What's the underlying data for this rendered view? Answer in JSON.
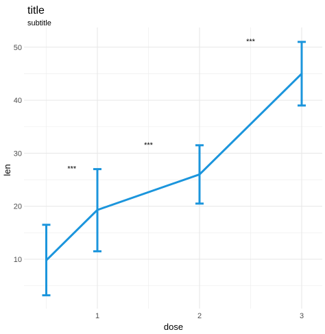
{
  "chart_data": {
    "type": "line",
    "title": "title",
    "subtitle": "subtitle",
    "xlabel": "dose",
    "ylabel": "len",
    "x_tick_labels": [
      "1",
      "2",
      "3"
    ],
    "y_tick_labels": [
      "10",
      "20",
      "30",
      "40",
      "50"
    ],
    "xlim": [
      0.5,
      3.0
    ],
    "ylim": [
      0,
      55
    ],
    "x_ticks": [
      1,
      2,
      3
    ],
    "y_ticks": [
      10,
      20,
      30,
      40,
      50
    ],
    "grid": true,
    "series": [
      {
        "color": "#1b95dc",
        "points": [
          {
            "x": 0.5,
            "y": 9.8,
            "ymin": 3.2,
            "ymax": 16.5
          },
          {
            "x": 1.0,
            "y": 19.3,
            "ymin": 11.5,
            "ymax": 27.0
          },
          {
            "x": 2.0,
            "y": 26.0,
            "ymin": 20.5,
            "ymax": 31.5
          },
          {
            "x": 3.0,
            "y": 45.0,
            "ymin": 39.0,
            "ymax": 51.0
          }
        ]
      }
    ],
    "annotations": [
      {
        "x": 0.75,
        "y": 27.0,
        "text": "***"
      },
      {
        "x": 1.5,
        "y": 31.5,
        "text": "***"
      },
      {
        "x": 2.5,
        "y": 51.0,
        "text": "***"
      }
    ]
  }
}
